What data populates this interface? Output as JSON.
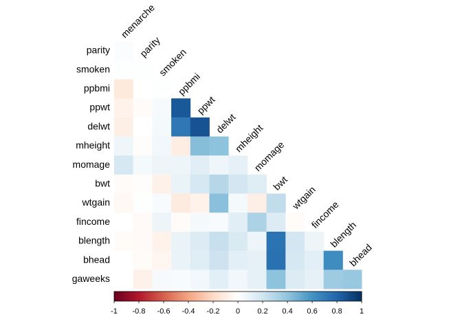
{
  "chart_data": {
    "type": "heatmap",
    "layout": "lower-triangle correlation matrix",
    "title": "",
    "column_labels": [
      "menarche",
      "parity",
      "smoken",
      "ppbmi",
      "ppwt",
      "delwt",
      "mheight",
      "momage",
      "bwt",
      "wtgain",
      "fincome",
      "blength",
      "bhead"
    ],
    "row_labels": [
      "parity",
      "smoken",
      "ppbmi",
      "ppwt",
      "delwt",
      "mheight",
      "momage",
      "bwt",
      "wtgain",
      "fincome",
      "blength",
      "bhead",
      "gaweeks"
    ],
    "values": [
      [
        0.02
      ],
      [
        0.01,
        0.01
      ],
      [
        -0.12,
        0.0,
        0.01
      ],
      [
        -0.07,
        -0.02,
        0.04,
        0.85
      ],
      [
        -0.09,
        0.0,
        0.05,
        0.72,
        0.87
      ],
      [
        0.07,
        -0.01,
        0.06,
        -0.1,
        0.43,
        0.41
      ],
      [
        0.18,
        0.05,
        0.08,
        0.08,
        0.13,
        0.07,
        0.11
      ],
      [
        -0.02,
        -0.01,
        -0.08,
        0.09,
        0.18,
        0.29,
        0.19,
        0.14
      ],
      [
        -0.04,
        0.01,
        0.03,
        -0.11,
        -0.07,
        0.42,
        0.05,
        -0.09,
        0.25
      ],
      [
        -0.0,
        -0.03,
        0.08,
        -0.02,
        0.05,
        0.03,
        0.13,
        0.32,
        0.15,
        -0.02
      ],
      [
        -0.02,
        -0.03,
        -0.07,
        0.09,
        0.15,
        0.23,
        0.16,
        0.08,
        0.74,
        0.19,
        0.08
      ],
      [
        -0.0,
        -0.02,
        -0.05,
        0.09,
        0.14,
        0.21,
        0.12,
        0.11,
        0.75,
        0.18,
        0.12,
        0.63
      ],
      [
        -0.0,
        -0.08,
        0.04,
        0.03,
        0.06,
        0.12,
        0.06,
        0.11,
        0.41,
        0.15,
        0.11,
        0.36,
        0.38
      ]
    ],
    "colorbar": {
      "range": [
        -1,
        1
      ],
      "ticks": [
        -1,
        -0.8,
        -0.6,
        -0.4,
        -0.2,
        0,
        0.2,
        0.4,
        0.6,
        0.8,
        1
      ],
      "tick_labels": [
        "-1",
        "-0.8",
        "-0.6",
        "-0.4",
        "-0.2",
        "0",
        "0.2",
        "0.4",
        "0.6",
        "0.8",
        "1"
      ],
      "placement": "bottom"
    },
    "colors": {
      "negative": "#67001f",
      "mid": "#ffffff",
      "positive": "#053061"
    },
    "grid": false,
    "legend": "colorbar-bottom"
  }
}
